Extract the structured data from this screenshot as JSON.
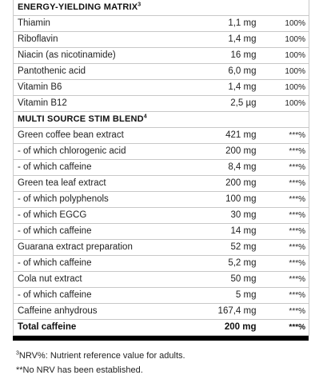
{
  "sections": [
    {
      "title": "ENERGY-YIELDING MATRIX",
      "title_sup": "3",
      "rows": [
        {
          "name": "Thiamin",
          "amount": "1,1 mg",
          "nrv": "100%"
        },
        {
          "name": "Riboflavin",
          "amount": "1,4 mg",
          "nrv": "100%"
        },
        {
          "name": "Niacin (as nicotinamide)",
          "amount": "16 mg",
          "nrv": "100%"
        },
        {
          "name": "Pantothenic acid",
          "amount": "6,0 mg",
          "nrv": "100%"
        },
        {
          "name": "Vitamin B6",
          "amount": "1,4 mg",
          "nrv": "100%"
        },
        {
          "name": "Vitamin B12",
          "amount": "2,5 µg",
          "nrv": "100%"
        }
      ]
    },
    {
      "title": "MULTI SOURCE STIM BLEND",
      "title_sup": "4",
      "rows": [
        {
          "name": "Green coffee bean extract",
          "amount": "421 mg",
          "nrv": "***%"
        },
        {
          "name": "- of which chlorogenic acid",
          "amount": "200 mg",
          "nrv": "***%"
        },
        {
          "name": "- of which caffeine",
          "amount": "8,4 mg",
          "nrv": "***%"
        },
        {
          "name": "Green tea leaf extract",
          "amount": "200 mg",
          "nrv": "***%"
        },
        {
          "name": "- of which polyphenols",
          "amount": "100 mg",
          "nrv": "***%"
        },
        {
          "name": "- of which EGCG",
          "amount": "30 mg",
          "nrv": "***%"
        },
        {
          "name": "- of which caffeine",
          "amount": "14 mg",
          "nrv": "***%"
        },
        {
          "name": "Guarana extract preparation",
          "amount": "52 mg",
          "nrv": "***%"
        },
        {
          "name": "- of which caffeine",
          "amount": "5,2 mg",
          "nrv": "***%"
        },
        {
          "name": "Cola nut extract",
          "amount": "50 mg",
          "nrv": "***%"
        },
        {
          "name": "- of which caffeine",
          "amount": "5 mg",
          "nrv": "***%"
        },
        {
          "name": "Caffeine anhydrous",
          "amount": "167,4 mg",
          "nrv": "***%"
        }
      ]
    }
  ],
  "total": {
    "name": "Total caffeine",
    "amount": "200 mg",
    "nrv": "***%"
  },
  "footnotes": {
    "nrv_sup": "3",
    "nrv_note": "NRV%: Nutrient reference value for adults.",
    "no_nrv_note": "**No NRV has been established."
  }
}
